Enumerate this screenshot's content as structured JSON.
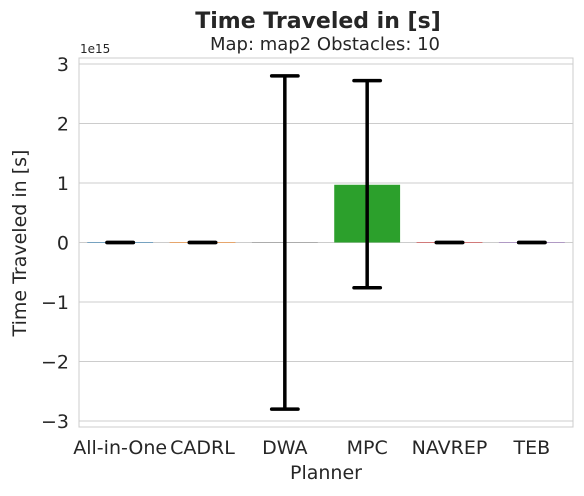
{
  "chart_data": {
    "type": "bar",
    "title": "Time Traveled in [s]",
    "subtitle": "Map: map2 Obstacles: 10",
    "xlabel": "Planner",
    "ylabel": "Time Traveled in [s]",
    "y_scale_label": "1e15",
    "y_scale": 1000000000000000.0,
    "ylim": [
      -3.1,
      3.1
    ],
    "yticks": [
      -3,
      -2,
      -1,
      0,
      1,
      2,
      3
    ],
    "ytick_labels": [
      "−3",
      "−2",
      "−1",
      "0",
      "1",
      "2",
      "3"
    ],
    "grid": true,
    "categories": [
      "All-in-One",
      "CADRL",
      "DWA",
      "MPC",
      "NAVREP",
      "TEB"
    ],
    "values": [
      0,
      0,
      0,
      0.97,
      0,
      0
    ],
    "error_low": [
      0,
      0,
      -2.8,
      -0.76,
      0,
      0
    ],
    "error_high": [
      0,
      0,
      2.8,
      2.72,
      0,
      0
    ],
    "colors": [
      "#1f77b4",
      "#ff7f0e",
      "#8c8c8c",
      "#2ca02c",
      "#d62728",
      "#9467bd"
    ]
  }
}
